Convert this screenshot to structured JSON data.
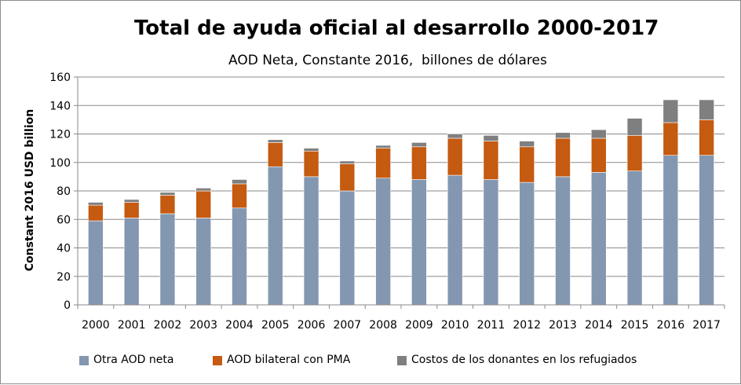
{
  "chart_data": {
    "type": "bar",
    "stacked": true,
    "title": "Total de ayuda oficial al desarrollo 2000-2017",
    "subtitle": "AOD Neta, Constante 2016,  billones de dólares",
    "xlabel": "",
    "ylabel": "Constant 2016 USD billion",
    "ylim": [
      0,
      160
    ],
    "yticks": [
      0,
      20,
      40,
      60,
      80,
      100,
      120,
      140,
      160
    ],
    "grid": true,
    "legend_position": "bottom",
    "categories": [
      "2000",
      "2001",
      "2002",
      "2003",
      "2004",
      "2005",
      "2006",
      "2007",
      "2008",
      "2009",
      "2010",
      "2011",
      "2012",
      "2013",
      "2014",
      "2015",
      "2016",
      "2017"
    ],
    "series": [
      {
        "name": "Otra AOD neta",
        "color": "#8497b0",
        "values": [
          59,
          61,
          64,
          61,
          68,
          97,
          90,
          80,
          89,
          88,
          91,
          88,
          86,
          90,
          93,
          94,
          105,
          105
        ]
      },
      {
        "name": "AOD bilateral con PMA",
        "color": "#c55a11",
        "values": [
          11,
          11,
          13,
          19,
          17,
          17,
          18,
          19,
          21,
          23,
          26,
          27,
          25,
          27,
          24,
          25,
          23,
          25
        ]
      },
      {
        "name": "Costos de los donantes en los refugiados",
        "color": "#7f7f7f",
        "values": [
          2,
          2,
          2,
          2,
          3,
          2,
          2,
          2,
          2,
          3,
          3,
          4,
          4,
          4,
          6,
          12,
          16,
          14
        ]
      }
    ]
  }
}
